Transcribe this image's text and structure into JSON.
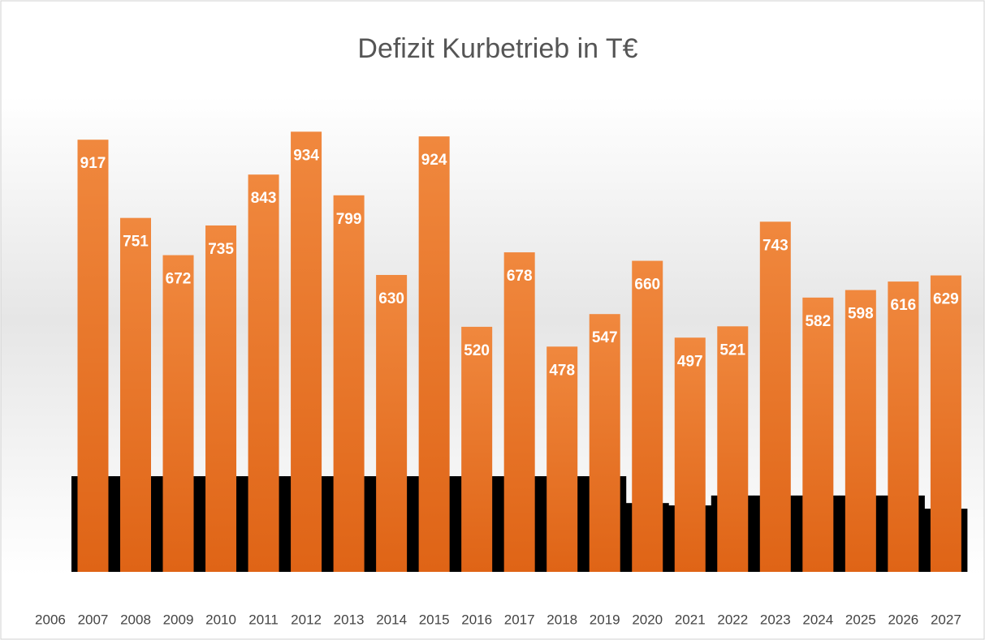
{
  "chart_data": {
    "type": "bar",
    "title": "Defizit Kurbetrieb in T€",
    "categories": [
      "2006",
      "2007",
      "2008",
      "2009",
      "2010",
      "2011",
      "2012",
      "2013",
      "2014",
      "2015",
      "2016",
      "2017",
      "2018",
      "2019",
      "2020",
      "2021",
      "2022",
      "2023",
      "2024",
      "2025",
      "2026",
      "2027"
    ],
    "series": [
      {
        "color": "#000000",
        "values": [
          null,
          203,
          203,
          203,
          203,
          203,
          203,
          203,
          203,
          203,
          203,
          203,
          203,
          203,
          146,
          141,
          162,
          162,
          162,
          162,
          162,
          134
        ]
      },
      {
        "color": "#ed7d31",
        "values": [
          null,
          917,
          751,
          672,
          735,
          843,
          934,
          799,
          630,
          924,
          520,
          678,
          478,
          547,
          660,
          497,
          521,
          743,
          582,
          598,
          616,
          629
        ]
      }
    ],
    "ylim": [
      0,
      1000
    ]
  }
}
